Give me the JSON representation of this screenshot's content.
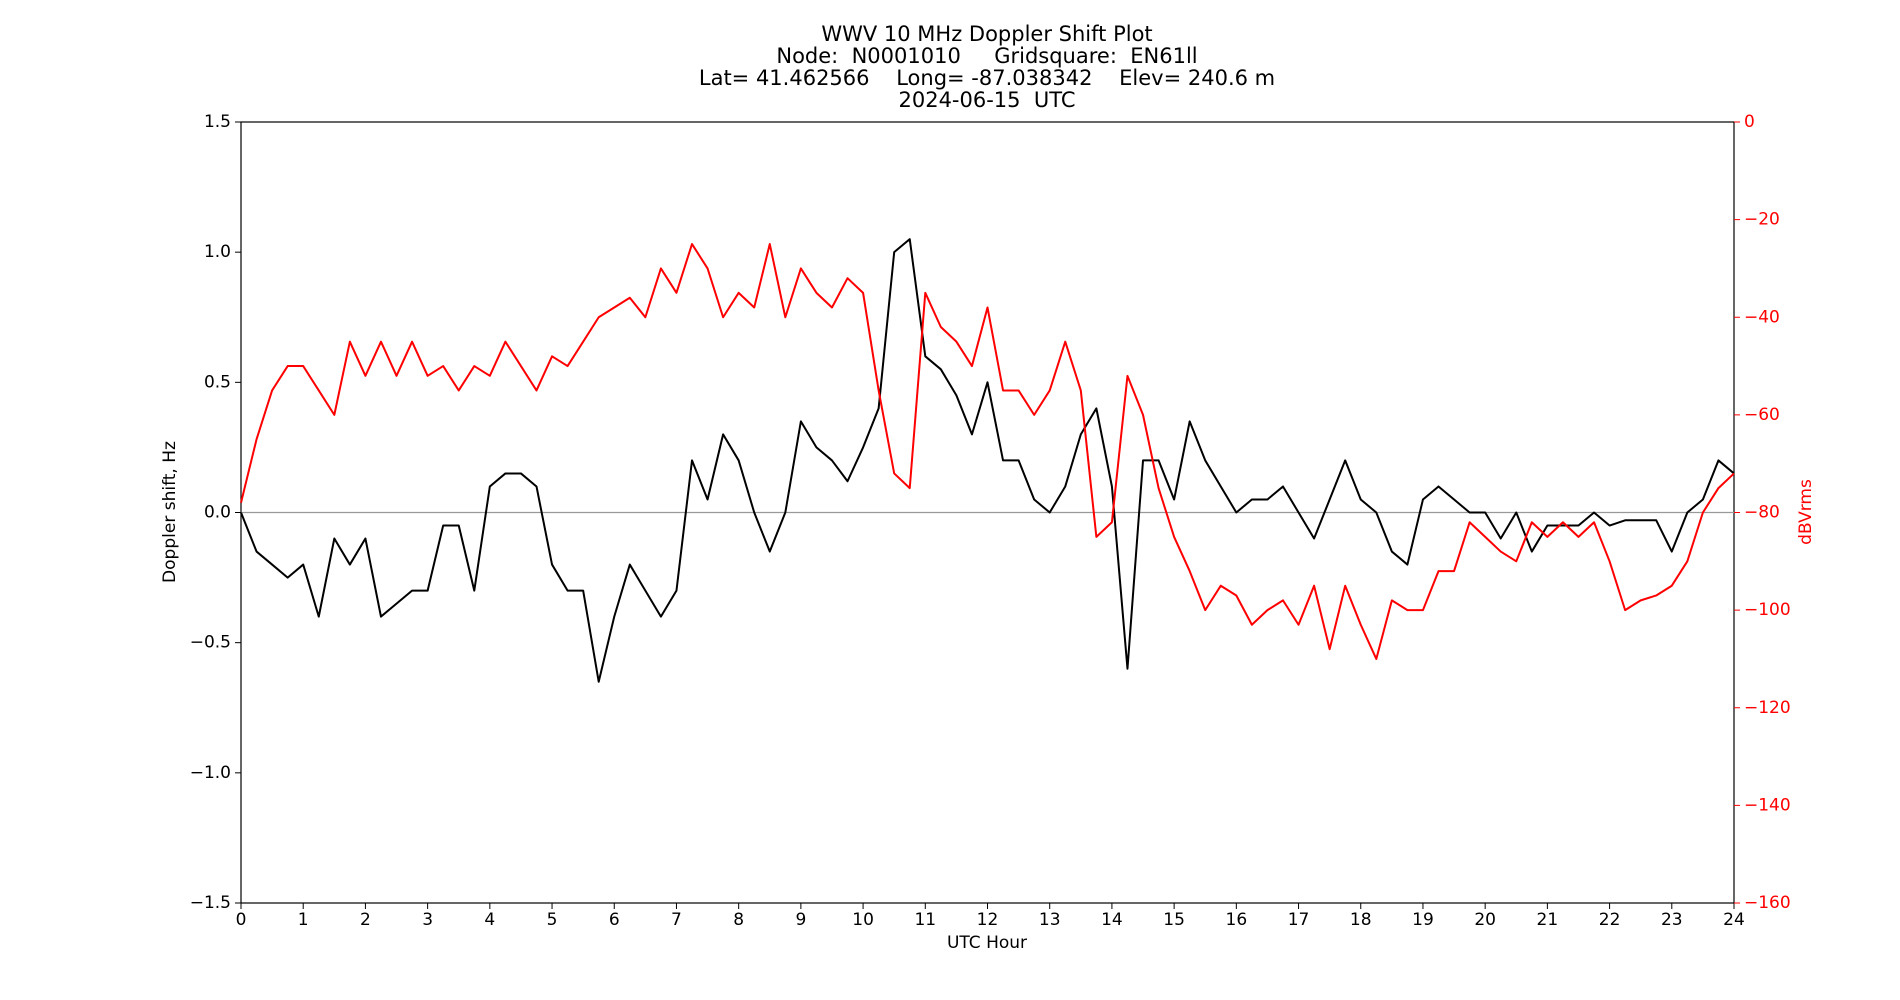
{
  "chart_data": {
    "type": "line",
    "title": [
      "WWV 10 MHz Doppler Shift Plot",
      "Node:  N0001010     Gridsquare:  EN61ll",
      "Lat= 41.462566    Long= -87.038342    Elev= 240.6 m",
      "2024-06-15  UTC"
    ],
    "xlabel": "UTC Hour",
    "ylabel": "Doppler shift, Hz",
    "y2label": "dBVrms",
    "y2color": "#ff0000",
    "zero_line": true,
    "xlim": [
      0,
      24
    ],
    "xticks": [
      0,
      1,
      2,
      3,
      4,
      5,
      6,
      7,
      8,
      9,
      10,
      11,
      12,
      13,
      14,
      15,
      16,
      17,
      18,
      19,
      20,
      21,
      22,
      23,
      24
    ],
    "ylim": [
      -1.5,
      1.5
    ],
    "yticks": [
      {
        "value": -1.5,
        "label": "−1.5"
      },
      {
        "value": -1.0,
        "label": "−1.0"
      },
      {
        "value": -0.5,
        "label": "−0.5"
      },
      {
        "value": 0,
        "label": "0.0"
      },
      {
        "value": 0.5,
        "label": "0.5"
      },
      {
        "value": 1.0,
        "label": "1.0"
      },
      {
        "value": 1.5,
        "label": "1.5"
      }
    ],
    "y2lim": [
      -160,
      0
    ],
    "y2ticks": [
      0,
      {
        "value": -20,
        "label": "−20"
      },
      {
        "value": -40,
        "label": "−40"
      },
      {
        "value": -60,
        "label": "−60"
      },
      {
        "value": -80,
        "label": "−80"
      },
      {
        "value": -100,
        "label": "−100"
      },
      {
        "value": -120,
        "label": "−120"
      },
      {
        "value": -140,
        "label": "−140"
      },
      {
        "value": -160,
        "label": "−160"
      }
    ],
    "x": [
      0,
      0.25,
      0.5,
      0.75,
      1,
      1.25,
      1.5,
      1.75,
      2,
      2.25,
      2.5,
      2.75,
      3,
      3.25,
      3.5,
      3.75,
      4,
      4.25,
      4.5,
      4.75,
      5,
      5.25,
      5.5,
      5.75,
      6,
      6.25,
      6.5,
      6.75,
      7,
      7.25,
      7.5,
      7.75,
      8,
      8.25,
      8.5,
      8.75,
      9,
      9.25,
      9.5,
      9.75,
      10,
      10.25,
      10.5,
      10.75,
      11,
      11.25,
      11.5,
      11.75,
      12,
      12.25,
      12.5,
      12.75,
      13,
      13.25,
      13.5,
      13.75,
      14,
      14.25,
      14.5,
      14.75,
      15,
      15.25,
      15.5,
      15.75,
      16,
      16.25,
      16.5,
      16.75,
      17,
      17.25,
      17.5,
      17.75,
      18,
      18.25,
      18.5,
      18.75,
      19,
      19.25,
      19.5,
      19.75,
      20,
      20.25,
      20.5,
      20.75,
      21,
      21.25,
      21.5,
      21.75,
      22,
      22.25,
      22.5,
      22.75,
      23,
      23.25,
      23.5,
      23.75,
      24
    ],
    "series": [
      {
        "color": "#000000",
        "values": [
          0,
          -0.15,
          -0.2,
          -0.25,
          -0.2,
          -0.4,
          -0.1,
          -0.2,
          -0.1,
          -0.4,
          -0.35,
          -0.3,
          -0.3,
          -0.05,
          -0.05,
          -0.3,
          0.1,
          0.15,
          0.15,
          0.1,
          -0.2,
          -0.3,
          -0.3,
          -0.65,
          -0.4,
          -0.2,
          -0.3,
          -0.4,
          -0.3,
          0.2,
          0.05,
          0.3,
          0.2,
          0,
          -0.15,
          0,
          0.35,
          0.25,
          0.2,
          0.12,
          0.25,
          0.4,
          1.0,
          1.05,
          0.6,
          0.55,
          0.45,
          0.3,
          0.5,
          0.2,
          0.2,
          0.05,
          0,
          0.1,
          0.3,
          0.4,
          0.1,
          -0.6,
          0.2,
          0.2,
          0.05,
          0.35,
          0.2,
          0.1,
          0,
          0.05,
          0.05,
          0.1,
          0,
          -0.1,
          0.05,
          0.2,
          0.05,
          0,
          -0.15,
          -0.2,
          0.05,
          0.1,
          0.05,
          0,
          0,
          -0.1,
          0,
          -0.15,
          -0.05,
          -0.05,
          -0.05,
          0,
          -0.05,
          -0.03,
          -0.03,
          -0.03,
          -0.15,
          0,
          0.05,
          0.2,
          0.15
        ]
      },
      {
        "color": "#ff0000",
        "axis": "y2",
        "values": [
          -78,
          -65,
          -55,
          -50,
          -50,
          -55,
          -60,
          -45,
          -52,
          -45,
          -52,
          -45,
          -52,
          -50,
          -55,
          -50,
          -52,
          -45,
          -50,
          -55,
          -48,
          -50,
          -45,
          -40,
          -38,
          -36,
          -40,
          -30,
          -35,
          -25,
          -30,
          -40,
          -35,
          -38,
          -25,
          -40,
          -30,
          -35,
          -38,
          -32,
          -35,
          -55,
          -72,
          -75,
          -35,
          -42,
          -45,
          -50,
          -38,
          -55,
          -55,
          -60,
          -55,
          -45,
          -55,
          -85,
          -82,
          -52,
          -60,
          -75,
          -85,
          -92,
          -100,
          -95,
          -97,
          -103,
          -100,
          -98,
          -103,
          -95,
          -108,
          -95,
          -103,
          -110,
          -98,
          -100,
          -100,
          -92,
          -92,
          -82,
          -85,
          -88,
          -90,
          -82,
          -85,
          -82,
          -85,
          -82,
          -90,
          -100,
          -98,
          -97,
          -95,
          -90,
          -80,
          -75,
          -72
        ]
      }
    ]
  }
}
